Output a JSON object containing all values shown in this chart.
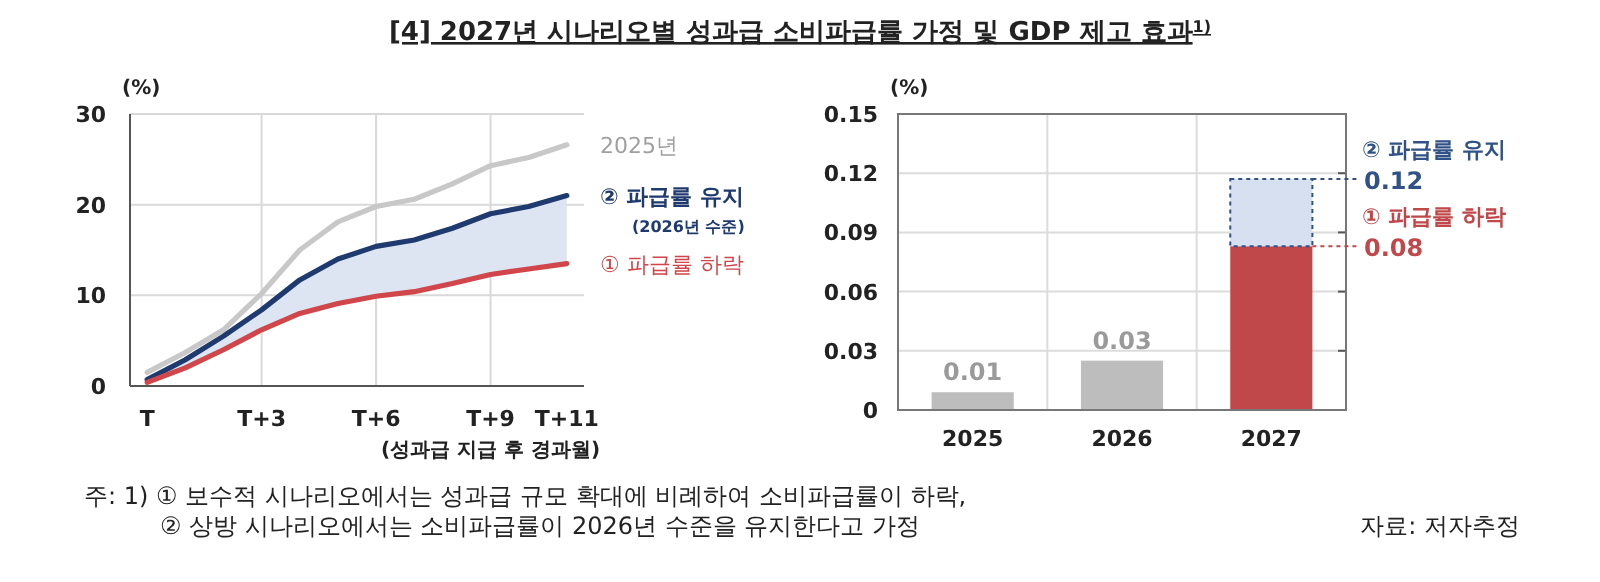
{
  "chart_data": [
    {
      "type": "line",
      "title": "[4] 2027년 시나리오별 성과급 소비파급률 가정 및 GDP 제고 효과$^{1)}$",
      "ylabel": "(%)",
      "xlabel": "(성과급 지급 후 경과월)",
      "categories": [
        "T",
        null,
        null,
        "T+3",
        null,
        null,
        "T+6",
        null,
        null,
        "T+9",
        null,
        "T+11"
      ],
      "ylim": [
        0,
        30
      ],
      "yticks": [
        0,
        10,
        20,
        30
      ],
      "grid": true,
      "line_style": "solid",
      "marker": "none",
      "series": [
        {
          "name": "2025년",
          "color": "#c8c8c8",
          "values": [
            1.5,
            3.7,
            6.2,
            10.2,
            15,
            18.1,
            19.8,
            20.6,
            22.3,
            24.3,
            25.2,
            26.6
          ]
        },
        {
          "name": "② 파급률 유지",
          "color": "#1f3a6e",
          "values": [
            0.7,
            2.9,
            5.5,
            8.4,
            11.7,
            14,
            15.4,
            16.1,
            17.4,
            19,
            19.8,
            21
          ],
          "lower": [
            0.4,
            2,
            4,
            6.2,
            8,
            9.1,
            9.9,
            10.4,
            11.3,
            12.3,
            12.9,
            13.5
          ],
          "upper": [
            0.7,
            2.9,
            5.5,
            8.4,
            11.7,
            14,
            15.4,
            16.1,
            17.4,
            19,
            19.8,
            21
          ]
        },
        {
          "name": "① 파급률 하락",
          "color": "#d0464a",
          "values": [
            0.4,
            2,
            4,
            6.2,
            8,
            9.1,
            9.9,
            10.4,
            11.3,
            12.3,
            12.9,
            13.5
          ]
        }
      ],
      "annotations": [
        "(2026년 수준)"
      ]
    },
    {
      "type": "bar",
      "stacked": true,
      "ylabel": "(%)",
      "categories": [
        "2025",
        "2026",
        "2027"
      ],
      "ylim": [
        0,
        0.15
      ],
      "yticks": [
        0,
        0.03,
        0.06,
        0.09,
        0.12,
        0.15
      ],
      "grid": true,
      "series": [
        {
          "color": "#bdbdbd",
          "values": [
            0.009,
            0.025,
            null
          ]
        },
        {
          "name": "① 파급률 하락",
          "color": "#c0484a",
          "values": [
            null,
            null,
            0.083
          ],
          "value_labels": [
            null,
            null,
            "0.08"
          ]
        },
        {
          "name": "② 파급률 유지",
          "color": "#d6e0f0",
          "values": [
            null,
            null,
            0.034
          ]
        }
      ],
      "totals": [
        "0.01",
        "0.03",
        "0.12"
      ],
      "annotations": [
        "주: 1) ① 보수적 시나리오에서는 성과급 규모 확대에 비례하여 소비파급률이 하락,",
        "② 상방 시나리오에서는 소비파급률이 2026년 수준을 유지한다고 가정",
        "자료: 저자추정"
      ]
    }
  ]
}
